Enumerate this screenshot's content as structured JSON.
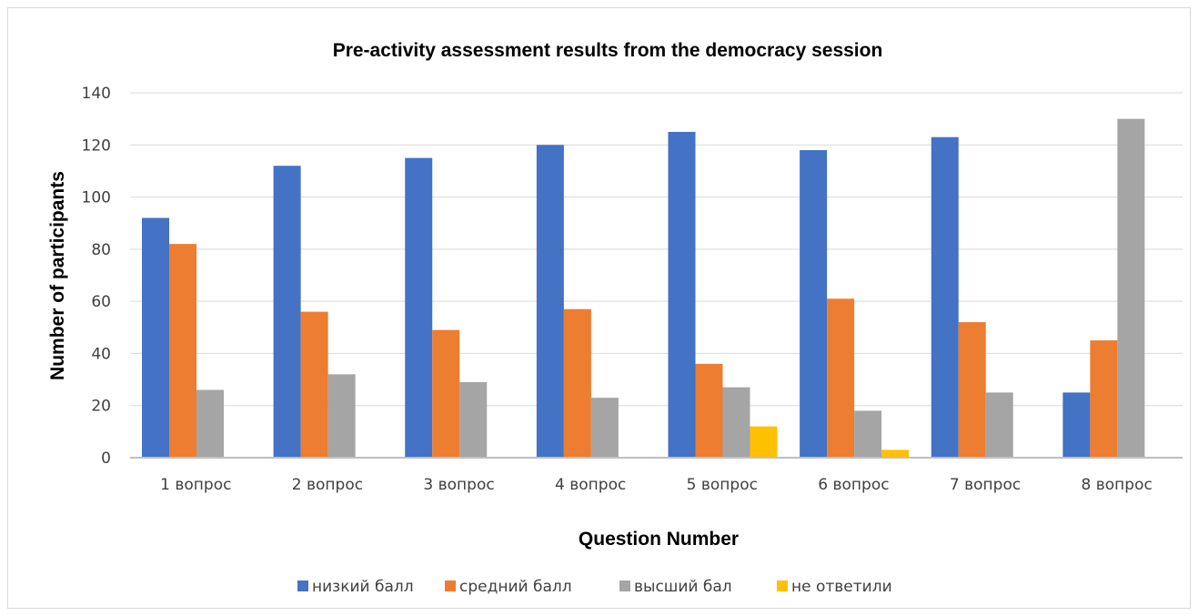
{
  "chart_data": {
    "type": "bar",
    "title": "Pre-activity assessment results from the democracy session",
    "xlabel": "Question Number",
    "ylabel": "Number of participants",
    "ylim": [
      0,
      140
    ],
    "yticks": [
      0,
      20,
      40,
      60,
      80,
      100,
      120,
      140
    ],
    "grid": true,
    "legend_position": "bottom",
    "categories": [
      "1 вопрос",
      "2 вопрос",
      "3 вопрос",
      "4 вопрос",
      "5 вопрос",
      "6 вопрос",
      "7 вопрос",
      "8 вопрос"
    ],
    "series": [
      {
        "name": "низкий балл",
        "color": "#4472C4",
        "values": [
          92,
          112,
          115,
          120,
          125,
          118,
          123,
          25
        ]
      },
      {
        "name": "средний балл",
        "color": "#ED7D31",
        "values": [
          82,
          56,
          49,
          57,
          36,
          61,
          52,
          45
        ]
      },
      {
        "name": "высший бал",
        "color": "#A5A5A5",
        "values": [
          26,
          32,
          29,
          23,
          27,
          18,
          25,
          130
        ]
      },
      {
        "name": "не ответили",
        "color": "#FFC000",
        "values": [
          0,
          0,
          0,
          0,
          12,
          3,
          0,
          0
        ]
      }
    ]
  }
}
